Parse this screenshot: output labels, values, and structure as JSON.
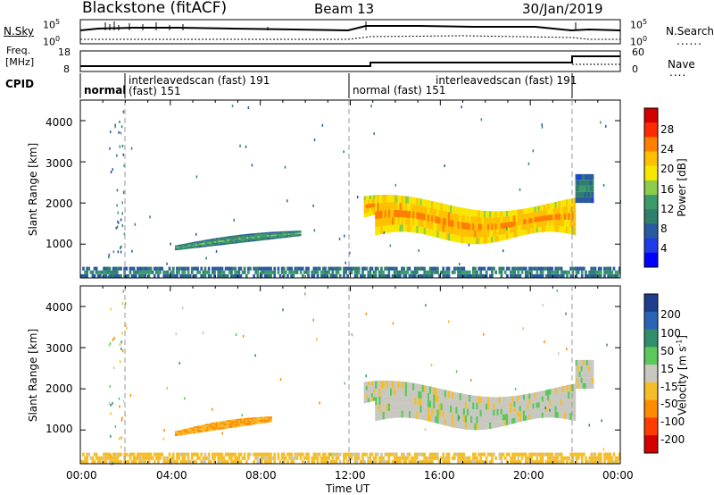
{
  "header": {
    "station": "Blackstone (fitACF)",
    "beam": "Beam 13",
    "date": "30/Jan/2019"
  },
  "noise_panel": {
    "left_label": "N.Sky",
    "right_label": "N.Search",
    "ytick_top": "10^5",
    "ytick_bottom": "10^0"
  },
  "freq_panel": {
    "left_label_line1": "Freq.",
    "left_label_line2": "[MHz]",
    "left_tick_top": "18",
    "left_tick_bottom": "8",
    "right_label": "Nave",
    "right_tick_top": "60",
    "right_tick_bottom": "0"
  },
  "cpid_panel": {
    "label": "CPID",
    "segments": [
      {
        "name": "normal",
        "start": 0.0,
        "end": 2.0
      },
      {
        "name": "interleavedscan (fast) 191",
        "start": 2.0,
        "end": 12.0
      },
      {
        "name": "normal (fast) 151",
        "start": 12.0,
        "end": 22.0
      },
      {
        "name": "interleavedscan (fast) 191",
        "start": 22.0,
        "end": 24.0
      }
    ],
    "extra_label": "(fast) 151"
  },
  "power_colorbar": {
    "label": "Power [dB]",
    "ticks": [
      "28",
      "24",
      "20",
      "16",
      "12",
      "8",
      "4"
    ],
    "colors": [
      "#d40000",
      "#ff2a00",
      "#ff7f00",
      "#ffc000",
      "#f7e600",
      "#8ccc4c",
      "#3c9a6c",
      "#2f7f6c",
      "#2a5aa0",
      "#1e3ce6",
      "#0000ff"
    ]
  },
  "velocity_colorbar": {
    "label": "Velocity [m s^-1]",
    "ticks": [
      "200",
      "100",
      "50",
      "15",
      "-15",
      "-50",
      "-100",
      "-200"
    ],
    "colors": [
      "#1e3c8c",
      "#2a64b4",
      "#2f8f6c",
      "#5ac85a",
      "#c8c8c0",
      "#f5be28",
      "#ff8c00",
      "#ff3c00",
      "#d40000"
    ]
  },
  "axes": {
    "ylabel": "Slant Range [km]",
    "yticks": [
      "4000",
      "3000",
      "2000",
      "1000"
    ],
    "xticks": [
      "00:00",
      "04:00",
      "08:00",
      "12:00",
      "16:00",
      "20:00",
      "00:00"
    ],
    "xlabel": "Time UT"
  },
  "chart_data": {
    "type": "heatmap",
    "title": "Blackstone (fitACF)",
    "xlabel": "Time UT",
    "ylabel": "Slant Range [km]",
    "x_range_hours": [
      0,
      24
    ],
    "y_range_km": [
      180,
      4500
    ],
    "markers_hours": [
      2.0,
      12.0,
      22.0
    ],
    "power_panel": {
      "colorbar": "Power [dB]",
      "regions": [
        {
          "name": "ground-scatter-band",
          "t": [
            0,
            24
          ],
          "range_km": [
            180,
            450
          ],
          "power_db": 8
        },
        {
          "name": "morning-echo",
          "t": [
            4.2,
            9.8
          ],
          "range_km": [
            850,
            1300
          ],
          "power_db": 10
        },
        {
          "name": "main-echo",
          "t": [
            12.6,
            22.0
          ],
          "range_km": [
            1100,
            2300
          ],
          "power_db": 20
        },
        {
          "name": "late-echo",
          "t": [
            22.0,
            22.8
          ],
          "range_km": [
            2000,
            2700
          ],
          "power_db": 8
        }
      ]
    },
    "velocity_panel": {
      "colorbar": "Velocity [m s^-1]",
      "regions": [
        {
          "name": "ground-scatter-band",
          "t": [
            0,
            24
          ],
          "range_km": [
            180,
            450
          ],
          "velocity_ms": -30
        },
        {
          "name": "morning-echo",
          "t": [
            4.2,
            8.5
          ],
          "range_km": [
            850,
            1300
          ],
          "velocity_ms": -50
        },
        {
          "name": "main-echo",
          "t": [
            12.6,
            22.0
          ],
          "range_km": [
            1100,
            2300
          ],
          "velocity_ms": 0
        },
        {
          "name": "late-echo",
          "t": [
            22.0,
            22.8
          ],
          "range_km": [
            2000,
            2700
          ],
          "velocity_ms": 0
        }
      ]
    }
  }
}
